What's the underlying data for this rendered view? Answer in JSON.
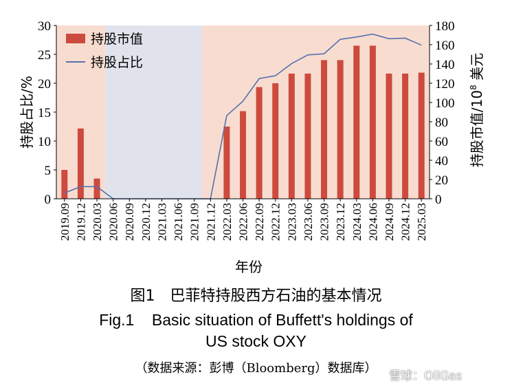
{
  "chart_data": {
    "type": "bar",
    "categories": [
      "2019.09",
      "2019.12",
      "2020.03",
      "2020.06",
      "2020.09",
      "2020.12",
      "2021.03",
      "2021.06",
      "2021.09",
      "2021.12",
      "2022.03",
      "2022.06",
      "2022.09",
      "2022.12",
      "2023.03",
      "2023.06",
      "2023.09",
      "2023.12",
      "2024.03",
      "2024.06",
      "2024.09",
      "2024.12",
      "2025.03"
    ],
    "series": [
      {
        "name": "持股市值",
        "kind": "bar",
        "axis": "right",
        "values": [
          30,
          73,
          21,
          0,
          0,
          0,
          0,
          0,
          0,
          0,
          75,
          91,
          116,
          120,
          130,
          130,
          144,
          144,
          159,
          159,
          130,
          130,
          131
        ]
      },
      {
        "name": "持股占比",
        "kind": "line",
        "axis": "left",
        "values": [
          1.0,
          2.1,
          2.1,
          0,
          0,
          0,
          0,
          0,
          0,
          0,
          14.4,
          16.9,
          20.8,
          21.3,
          23.4,
          24.9,
          25.1,
          27.6,
          28.0,
          28.5,
          27.7,
          27.8,
          26.6
        ]
      }
    ],
    "left_axis": {
      "label": "持股占比/%",
      "range": [
        0,
        30
      ],
      "ticks": [
        "0",
        "5",
        "10",
        "15",
        "20",
        "25",
        "30"
      ]
    },
    "right_axis": {
      "label_main": "持股市值/10",
      "label_sup": "8",
      "label_unit": " 美元",
      "range": [
        0,
        180
      ],
      "ticks": [
        "0",
        "20",
        "40",
        "60",
        "80",
        "100",
        "120",
        "140",
        "160",
        "180"
      ]
    },
    "xlabel": "年份",
    "shaded_periods": [
      {
        "from": "2019.09",
        "to": "2020.03",
        "color": "#f8dccf"
      },
      {
        "from": "2020.06",
        "to": "2021.09",
        "color": "#e1e3ec"
      },
      {
        "from": "2021.12",
        "to": "2025.03",
        "color": "#f8dccf"
      }
    ],
    "colors": {
      "bar": "#cd4a3e",
      "line": "#5472b0",
      "axis": "#000000"
    },
    "legend_position": "top-left"
  },
  "caption": {
    "cn": "图1　巴菲特持股西方石油的基本情况",
    "en_line1": "Fig.1    Basic situation of Buffett's holdings of",
    "en_line2": "US stock OXY",
    "source": "（数据来源：彭博（Bloomberg）数据库）"
  },
  "watermark": "雪球：OilGas"
}
